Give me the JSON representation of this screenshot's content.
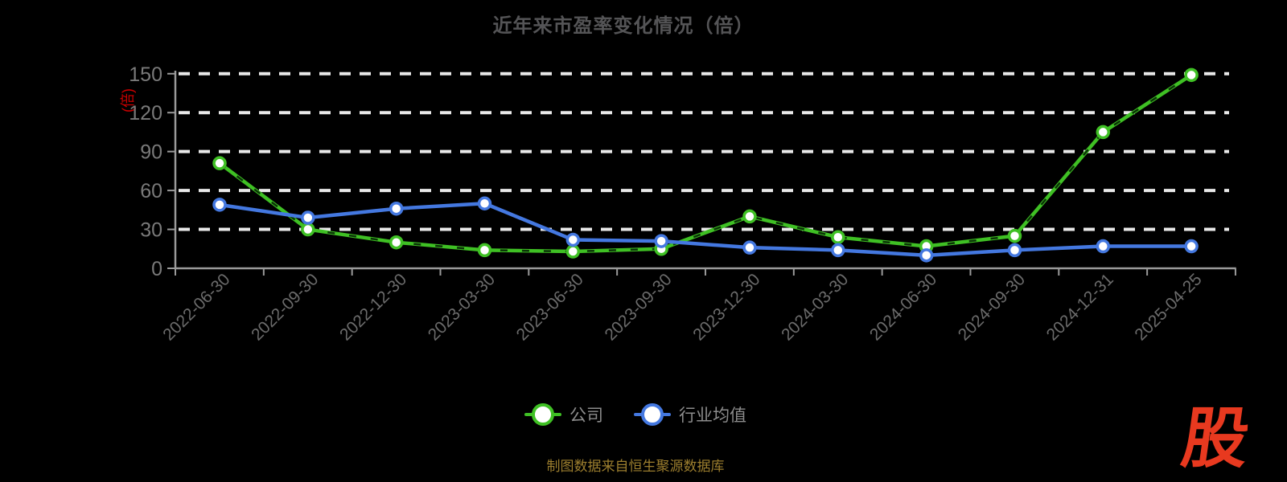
{
  "title": "近年来市盈率变化情况（倍）",
  "chart_data": {
    "type": "line",
    "title": "近年来市盈率变化情况（倍）",
    "xlabel": "",
    "ylabel": "(倍)",
    "ylim": [
      0,
      150
    ],
    "y_ticks": [
      0,
      30,
      60,
      90,
      120,
      150
    ],
    "grid": "horizontal-dashed-white",
    "legend_position": "bottom",
    "categories": [
      "2022-06-30",
      "2022-09-30",
      "2022-12-30",
      "2023-03-30",
      "2023-06-30",
      "2023-09-30",
      "2023-12-30",
      "2024-03-30",
      "2024-06-30",
      "2024-09-30",
      "2024-12-31",
      "2025-04-25"
    ],
    "series": [
      {
        "id": "company",
        "name": "公司",
        "color": "#3fc024",
        "style": "solid-with-dark-dash-overlay",
        "marker": "white-circle",
        "values": [
          81,
          30,
          20,
          14,
          13,
          15,
          40,
          24,
          17,
          25,
          105,
          149
        ]
      },
      {
        "id": "industry",
        "name": "行业均值",
        "color": "#4478e0",
        "style": "solid",
        "marker": "white-circle",
        "values": [
          49,
          39,
          46,
          50,
          22,
          21,
          16,
          14,
          10,
          14,
          17,
          17
        ]
      }
    ]
  },
  "footer": {
    "caption": "制图数据来自恒生聚源数据库"
  },
  "logo": {
    "text": "股"
  },
  "colors": {
    "background": "#000000",
    "title_text": "#545456",
    "axis_line": "#9a9a9a",
    "gridline": "#e9e9e9",
    "y_tick_label": "#7a7a7a",
    "x_tick_label": "#6b6b6b",
    "y_unit_label": "#c80000",
    "legend_text": "#8c8c8c",
    "caption_text": "#9c7e2e",
    "logo_red": "#e8391f",
    "company_line": "#3fc024",
    "industry_line": "#4478e0"
  }
}
